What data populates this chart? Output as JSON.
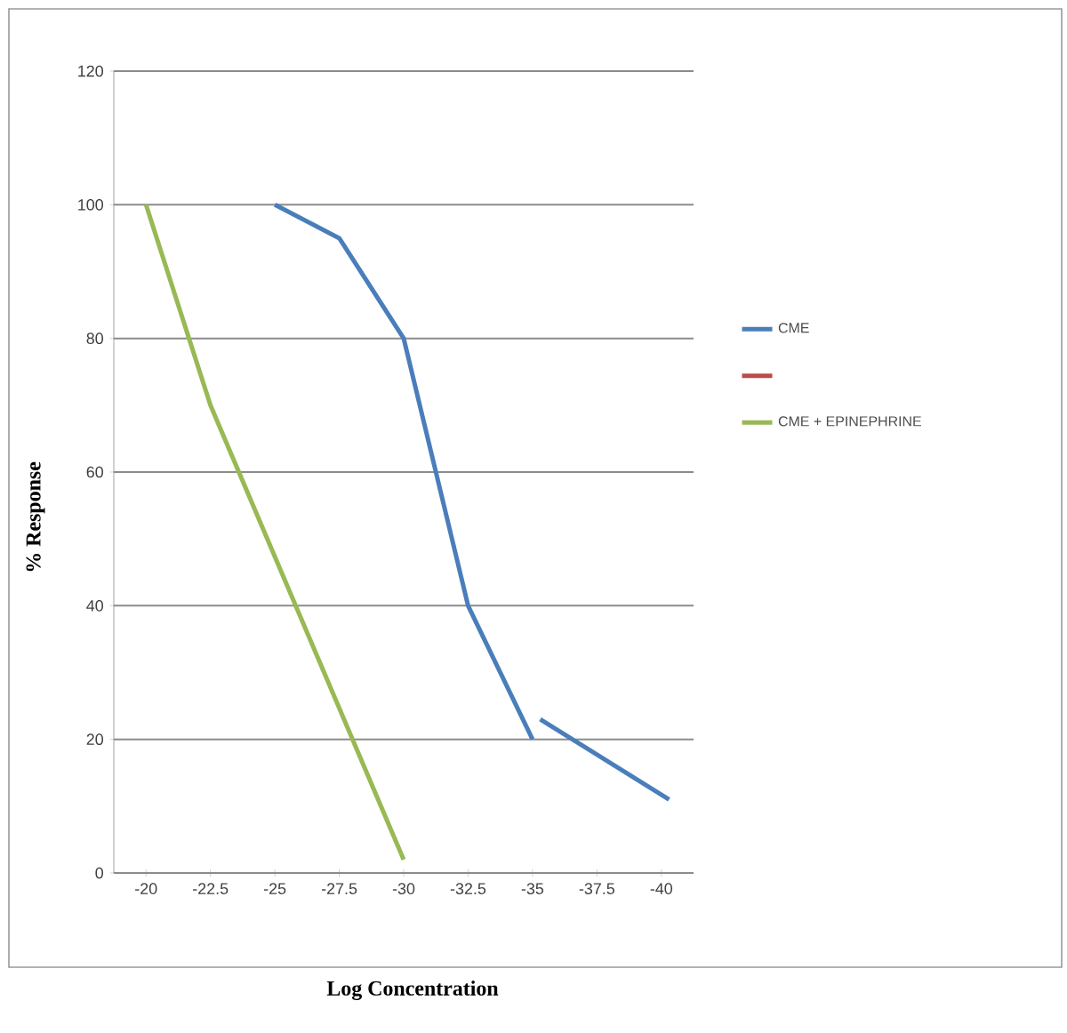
{
  "chart_data": {
    "type": "line",
    "xlabel": "Log Concentration",
    "ylabel": "% Response",
    "xlim": [
      -18.75,
      -41.25
    ],
    "xticks": [
      -20,
      -22.5,
      -25,
      -27.5,
      -30,
      -32.5,
      -35,
      -37.5,
      -40
    ],
    "ylim": [
      0,
      120
    ],
    "yticks": [
      0,
      20,
      40,
      60,
      80,
      100,
      120
    ],
    "grid": "y",
    "legend": "right",
    "series": [
      {
        "name": "CME",
        "color": "#4a7ebb",
        "x": [
          -25,
          -27.5,
          -30,
          -32.5,
          -35
        ],
        "values": [
          100,
          95,
          80,
          40,
          20
        ]
      },
      {
        "color": "#4a7ebb",
        "x": [
          -35.3,
          -40.3
        ],
        "values": [
          23,
          11
        ]
      },
      {
        "color": "#be4b48"
      },
      {
        "name": "CME + EPINEPHRINE",
        "color": "#98b954",
        "x": [
          -20,
          -22.5,
          -30
        ],
        "values": [
          100,
          70,
          2
        ]
      }
    ]
  }
}
